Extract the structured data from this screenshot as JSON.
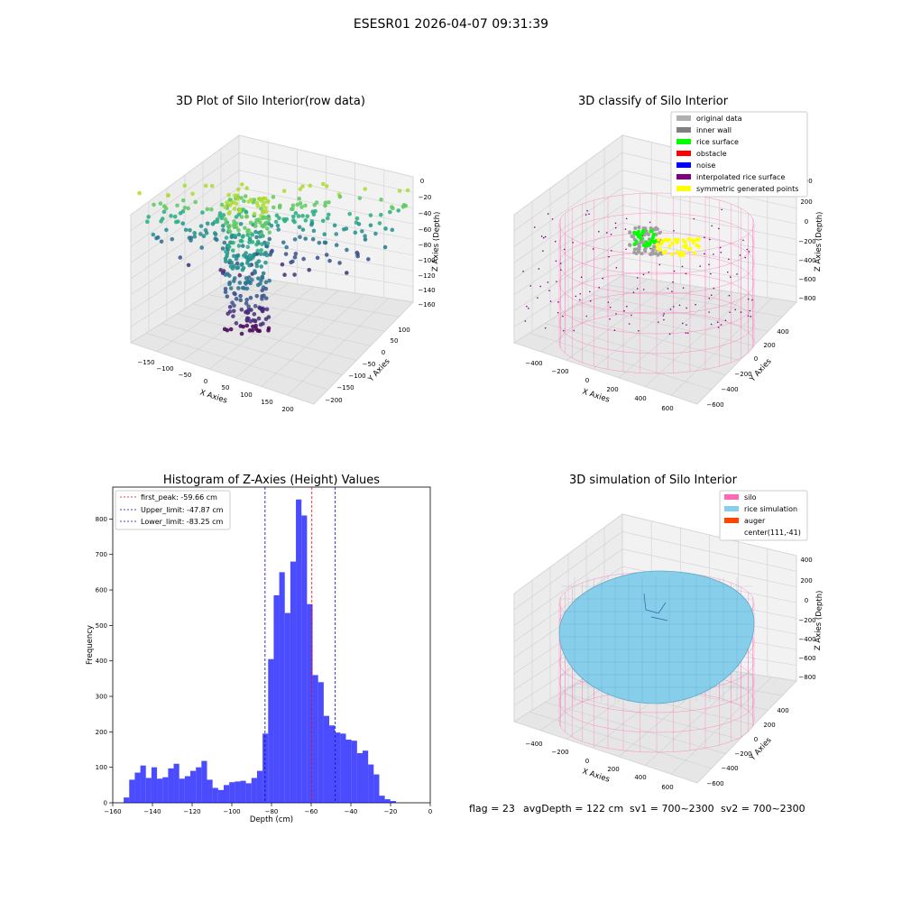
{
  "suptitle": "ESESR01 2026-04-07 09:31:39",
  "footer": {
    "flag": "flag = 23",
    "avg_depth": "avgDepth = 122 cm",
    "sv1": "sv1 = 700~2300",
    "sv2": "sv2 = 700~2300"
  },
  "chart_data": [
    {
      "type": "scatter",
      "title": "3D Plot of Silo Interior(row data)",
      "xlabel": "X Axies",
      "ylabel": "Y Axies",
      "zlabel": "Z Axies (Depth)",
      "x_ticks": [
        "−150",
        "−100",
        "−50",
        "0",
        "50",
        "100",
        "150",
        "200"
      ],
      "y_ticks": [
        "100",
        "50",
        "0",
        "−50",
        "−100",
        "−150",
        "−200"
      ],
      "z_ticks": [
        "0",
        "−20",
        "−40",
        "−60",
        "−80",
        "−100",
        "−120",
        "−140",
        "−160"
      ],
      "colormap": "viridis",
      "grid": true
    },
    {
      "type": "scatter",
      "title": "3D classify of Silo Interior",
      "xlabel": "X Axies",
      "ylabel": "Y Axies",
      "zlabel": "Z Axies (Depth)",
      "x_ticks": [
        "−400",
        "−200",
        "0",
        "200",
        "400",
        "600"
      ],
      "y_ticks": [
        "400",
        "200",
        "0",
        "−200",
        "−400",
        "−600"
      ],
      "z_ticks": [
        "400",
        "200",
        "0",
        "−200",
        "−400",
        "−600",
        "−800"
      ],
      "legend_position": "top-right",
      "legend": [
        {
          "label": "original data",
          "color": "#b0b0b0"
        },
        {
          "label": "inner wall",
          "color": "#808080"
        },
        {
          "label": "rice surface",
          "color": "#00ff00"
        },
        {
          "label": "obstacle",
          "color": "#ff0000"
        },
        {
          "label": "noise",
          "color": "#0000ff"
        },
        {
          "label": "interpolated rice surface",
          "color": "#800080"
        },
        {
          "label": "symmetric generated points",
          "color": "#ffff00"
        }
      ],
      "grid": true
    },
    {
      "type": "bar",
      "title": "Histogram of Z-Axies (Height) Values",
      "xlabel": "Depth (cm)",
      "ylabel": "Frequency",
      "xlim": [
        -160,
        0
      ],
      "ylim": [
        0,
        890
      ],
      "x_ticks": [
        -160,
        -140,
        -120,
        -100,
        -80,
        -60,
        -40,
        -20,
        0
      ],
      "y_ticks": [
        0,
        100,
        200,
        300,
        400,
        500,
        600,
        700,
        800
      ],
      "bin_start": -154.5,
      "bin_width": 2.8,
      "values": [
        15,
        65,
        85,
        105,
        70,
        100,
        68,
        72,
        97,
        110,
        68,
        75,
        90,
        100,
        118,
        65,
        42,
        36,
        50,
        58,
        60,
        62,
        55,
        70,
        90,
        195,
        405,
        585,
        650,
        535,
        680,
        855,
        810,
        560,
        360,
        340,
        245,
        218,
        198,
        195,
        178,
        175,
        140,
        147,
        108,
        80,
        20,
        10,
        5
      ],
      "color": "#0000ff",
      "lines": [
        {
          "label": "first_peak: -59.66 cm",
          "value": -59.66,
          "color": "#ff0000"
        },
        {
          "label": "Upper_limit: -47.87 cm",
          "value": -47.87,
          "color": "#0000cc"
        },
        {
          "label": "Lower_limit: -83.25 cm",
          "value": -83.25,
          "color": "#0000cc"
        }
      ],
      "legend_position": "top-left"
    },
    {
      "type": "surface",
      "title": "3D simulation of Silo Interior",
      "xlabel": "X Axies",
      "ylabel": "Y Axies",
      "zlabel": "Z Axies (Depth)",
      "x_ticks": [
        "−400",
        "−200",
        "0",
        "200",
        "400",
        "600"
      ],
      "y_ticks": [
        "400",
        "200",
        "0",
        "−200",
        "−400",
        "−600"
      ],
      "z_ticks": [
        "400",
        "200",
        "0",
        "−200",
        "−400",
        "−600",
        "−800"
      ],
      "legend_position": "top-right",
      "legend": [
        {
          "label": "silo",
          "color": "#ff69b4"
        },
        {
          "label": "rice simulation",
          "color": "#87ceeb"
        },
        {
          "label": "auger",
          "color": "#ff4500"
        },
        {
          "label": "center(111,-41)",
          "color": ""
        }
      ],
      "grid": true
    }
  ]
}
